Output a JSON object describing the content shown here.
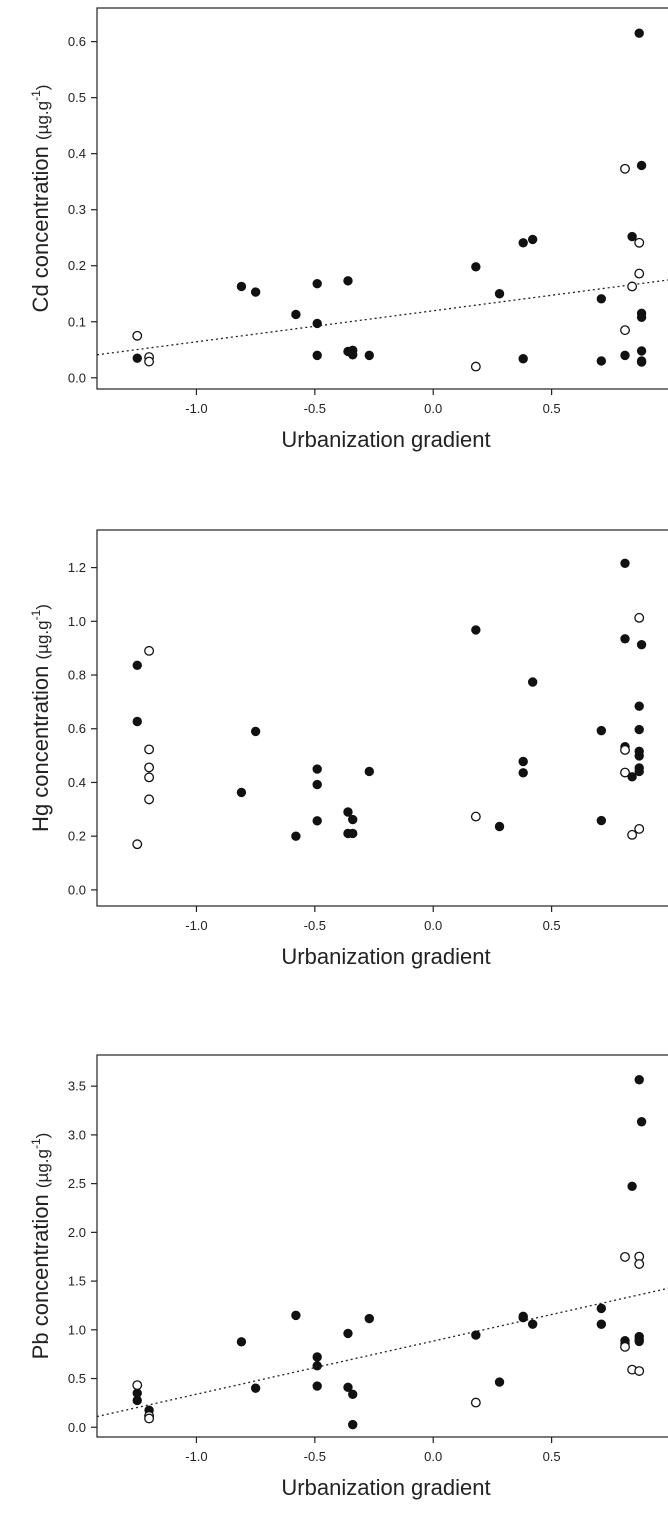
{
  "chart_data": [
    {
      "type": "scatter",
      "xlabel": "Urbanization gradient",
      "ylabel": {
        "element": "Cd",
        "word": "concentration",
        "unit": "(µg.g",
        "sup": "-1",
        "close": ")"
      },
      "xlim": [
        -1.42,
        1.0
      ],
      "ylim": [
        -0.02,
        0.66
      ],
      "xticks": [
        -1.0,
        -0.5,
        0.0,
        0.5
      ],
      "xtick_labels": [
        "-1.0",
        "-0.5",
        "0.0",
        "0.5"
      ],
      "yticks": [
        0.0,
        0.1,
        0.2,
        0.3,
        0.4,
        0.5,
        0.6
      ],
      "ytick_labels": [
        "0.0",
        "0.1",
        "0.2",
        "0.3",
        "0.4",
        "0.5",
        "0.6"
      ],
      "trendline": {
        "x": [
          -1.42,
          1.0
        ],
        "y": [
          0.041,
          0.175
        ]
      },
      "filled": [
        [
          -1.25,
          0.035
        ],
        [
          -0.81,
          0.163
        ],
        [
          -0.75,
          0.153
        ],
        [
          -0.58,
          0.113
        ],
        [
          -0.49,
          0.168
        ],
        [
          -0.49,
          0.097
        ],
        [
          -0.49,
          0.04
        ],
        [
          -0.36,
          0.173
        ],
        [
          -0.36,
          0.047
        ],
        [
          -0.34,
          0.049
        ],
        [
          -0.34,
          0.041
        ],
        [
          -0.27,
          0.04
        ],
        [
          0.18,
          0.198
        ],
        [
          0.28,
          0.15
        ],
        [
          0.38,
          0.241
        ],
        [
          0.38,
          0.034
        ],
        [
          0.42,
          0.247
        ],
        [
          0.71,
          0.141
        ],
        [
          0.71,
          0.03
        ],
        [
          0.81,
          0.04
        ],
        [
          0.84,
          0.252
        ],
        [
          0.87,
          0.615
        ],
        [
          0.88,
          0.379
        ],
        [
          0.88,
          0.115
        ],
        [
          0.88,
          0.108
        ],
        [
          0.88,
          0.048
        ],
        [
          0.88,
          0.03
        ],
        [
          0.88,
          0.028
        ]
      ],
      "open": [
        [
          -1.25,
          0.075
        ],
        [
          -1.2,
          0.037
        ],
        [
          -1.2,
          0.029
        ],
        [
          0.18,
          0.02
        ],
        [
          0.81,
          0.373
        ],
        [
          0.81,
          0.085
        ],
        [
          0.84,
          0.163
        ],
        [
          0.87,
          0.241
        ],
        [
          0.87,
          0.186
        ]
      ]
    },
    {
      "type": "scatter",
      "xlabel": "Urbanization gradient",
      "ylabel": {
        "element": "Hg",
        "word": "concentration",
        "unit": "(µg.g",
        "sup": "-1",
        "close": ")"
      },
      "xlim": [
        -1.42,
        1.0
      ],
      "ylim": [
        -0.06,
        1.34
      ],
      "xticks": [
        -1.0,
        -0.5,
        0.0,
        0.5
      ],
      "xtick_labels": [
        "-1.0",
        "-0.5",
        "0.0",
        "0.5"
      ],
      "yticks": [
        0.0,
        0.2,
        0.4,
        0.6,
        0.8,
        1.0,
        1.2
      ],
      "ytick_labels": [
        "0.0",
        "0.2",
        "0.4",
        "0.6",
        "0.8",
        "1.0",
        "1.2"
      ],
      "trendline": null,
      "filled": [
        [
          -1.25,
          0.836
        ],
        [
          -1.25,
          0.627
        ],
        [
          -0.81,
          0.363
        ],
        [
          -0.75,
          0.59
        ],
        [
          -0.58,
          0.2
        ],
        [
          -0.49,
          0.45
        ],
        [
          -0.49,
          0.392
        ],
        [
          -0.49,
          0.257
        ],
        [
          -0.36,
          0.29
        ],
        [
          -0.36,
          0.21
        ],
        [
          -0.34,
          0.262
        ],
        [
          -0.34,
          0.21
        ],
        [
          -0.27,
          0.441
        ],
        [
          0.18,
          0.968
        ],
        [
          0.28,
          0.236
        ],
        [
          0.38,
          0.478
        ],
        [
          0.38,
          0.436
        ],
        [
          0.42,
          0.774
        ],
        [
          0.71,
          0.593
        ],
        [
          0.71,
          0.258
        ],
        [
          0.81,
          1.216
        ],
        [
          0.81,
          0.935
        ],
        [
          0.81,
          0.533
        ],
        [
          0.84,
          0.421
        ],
        [
          0.87,
          0.684
        ],
        [
          0.87,
          0.597
        ],
        [
          0.87,
          0.516
        ],
        [
          0.87,
          0.499
        ],
        [
          0.87,
          0.454
        ],
        [
          0.87,
          0.441
        ],
        [
          0.88,
          0.913
        ]
      ],
      "open": [
        [
          -1.25,
          0.17
        ],
        [
          -1.2,
          0.89
        ],
        [
          -1.2,
          0.523
        ],
        [
          -1.2,
          0.456
        ],
        [
          -1.2,
          0.419
        ],
        [
          -1.2,
          0.337
        ],
        [
          0.18,
          0.273
        ],
        [
          0.81,
          0.521
        ],
        [
          0.81,
          0.437
        ],
        [
          0.84,
          0.205
        ],
        [
          0.87,
          1.013
        ],
        [
          0.87,
          0.227
        ]
      ]
    },
    {
      "type": "scatter",
      "xlabel": "Urbanization gradient",
      "ylabel": {
        "element": "Pb",
        "word": "concentration",
        "unit": "(µg.g",
        "sup": "-1",
        "close": ")"
      },
      "xlim": [
        -1.42,
        1.0
      ],
      "ylim": [
        -0.1,
        3.82
      ],
      "xticks": [
        -1.0,
        -0.5,
        0.0,
        0.5
      ],
      "xtick_labels": [
        "-1.0",
        "-0.5",
        "0.0",
        "0.5"
      ],
      "yticks": [
        0.0,
        0.5,
        1.0,
        1.5,
        2.0,
        2.5,
        3.0,
        3.5
      ],
      "ytick_labels": [
        "0.0",
        "0.5",
        "1.0",
        "1.5",
        "2.0",
        "2.5",
        "3.0",
        "3.5"
      ],
      "trendline": {
        "x": [
          -1.42,
          1.0
        ],
        "y": [
          0.11,
          1.43
        ]
      },
      "filled": [
        [
          -1.25,
          0.35
        ],
        [
          -1.25,
          0.275
        ],
        [
          -1.2,
          0.175
        ],
        [
          -0.81,
          0.877
        ],
        [
          -0.75,
          0.401
        ],
        [
          -0.58,
          1.148
        ],
        [
          -0.49,
          0.721
        ],
        [
          -0.49,
          0.631
        ],
        [
          -0.49,
          0.423
        ],
        [
          -0.36,
          0.963
        ],
        [
          -0.36,
          0.41
        ],
        [
          -0.34,
          0.338
        ],
        [
          -0.34,
          0.027
        ],
        [
          -0.27,
          1.115
        ],
        [
          0.18,
          0.946
        ],
        [
          0.28,
          0.464
        ],
        [
          0.38,
          1.124
        ],
        [
          0.38,
          1.138
        ],
        [
          0.42,
          1.058
        ],
        [
          0.71,
          1.22
        ],
        [
          0.71,
          1.057
        ],
        [
          0.81,
          0.888
        ],
        [
          0.81,
          0.857
        ],
        [
          0.84,
          2.473
        ],
        [
          0.87,
          3.566
        ],
        [
          0.87,
          0.931
        ],
        [
          0.87,
          0.899
        ],
        [
          0.87,
          0.881
        ],
        [
          0.88,
          3.135
        ]
      ],
      "open": [
        [
          -1.25,
          0.432
        ],
        [
          -1.2,
          0.117
        ],
        [
          -1.2,
          0.09
        ],
        [
          0.18,
          0.253
        ],
        [
          0.81,
          1.748
        ],
        [
          0.81,
          0.825
        ],
        [
          0.84,
          0.591
        ],
        [
          0.87,
          1.752
        ],
        [
          0.87,
          1.675
        ],
        [
          0.87,
          0.577
        ]
      ]
    }
  ]
}
